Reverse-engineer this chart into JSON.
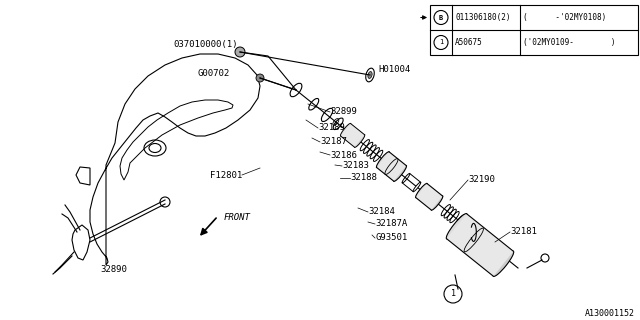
{
  "bg_color": "#ffffff",
  "line_color": "#000000",
  "fig_width": 6.4,
  "fig_height": 3.2,
  "dpi": 100,
  "diagram_id": "A130001152",
  "table": {
    "row1_left": "011306180(2)",
    "row1_right": "(      -'02MY0108)",
    "row2_left": "A50675",
    "row2_right": "('02MY0109-        )"
  }
}
